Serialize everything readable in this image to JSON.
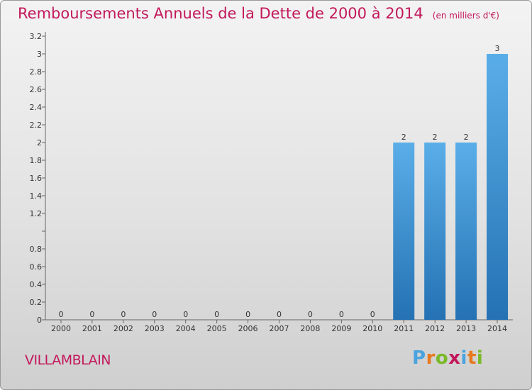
{
  "title": "Remboursements Annuels de la Dette de 2000 à 2014",
  "unit": "(en milliers d'€)",
  "commune": "VILLAMBLAIN",
  "logo": {
    "letters": [
      "P",
      "r",
      "o",
      "x",
      "i",
      "t",
      "i"
    ],
    "colors": [
      "#4aa3df",
      "#e8791e",
      "#7ab929",
      "#c2185b",
      "#4aa3df",
      "#e8791e",
      "#7ab929"
    ]
  },
  "colors": {
    "bar_top": "#5aaee8",
    "bar_bottom": "#2471b3",
    "title": "#c2185b"
  },
  "chart_data": {
    "type": "bar",
    "title": "Remboursements Annuels de la Dette de 2000 à 2014",
    "ylabel": "en milliers d'€",
    "xlabel": "",
    "categories": [
      "2000",
      "2001",
      "2002",
      "2003",
      "2004",
      "2005",
      "2006",
      "2007",
      "2008",
      "2009",
      "2010",
      "2011",
      "2012",
      "2013",
      "2014"
    ],
    "values": [
      0,
      0,
      0,
      0,
      0,
      0,
      0,
      0,
      0,
      0,
      0,
      2,
      2,
      2,
      3
    ],
    "data_labels": [
      "0",
      "0",
      "0",
      "0",
      "0",
      "0",
      "0",
      "0",
      "0",
      "0",
      "0",
      "2",
      "2",
      "2",
      "3"
    ],
    "ylim": [
      0,
      3.2
    ],
    "yticks": [
      0,
      0.2,
      0.4,
      0.6,
      0.8,
      1,
      1.2,
      1.4,
      1.6,
      1.8,
      2,
      2.2,
      2.4,
      2.6,
      2.8,
      3,
      3.2
    ],
    "ytick_labels": [
      "0",
      "0.2",
      "0.4",
      "0.6",
      "0.8",
      "",
      "1.2",
      "1.4",
      "1.6",
      "1.8",
      "2",
      "2.2",
      "2.4",
      "2.6",
      "2.8",
      "3",
      "3.2"
    ]
  }
}
